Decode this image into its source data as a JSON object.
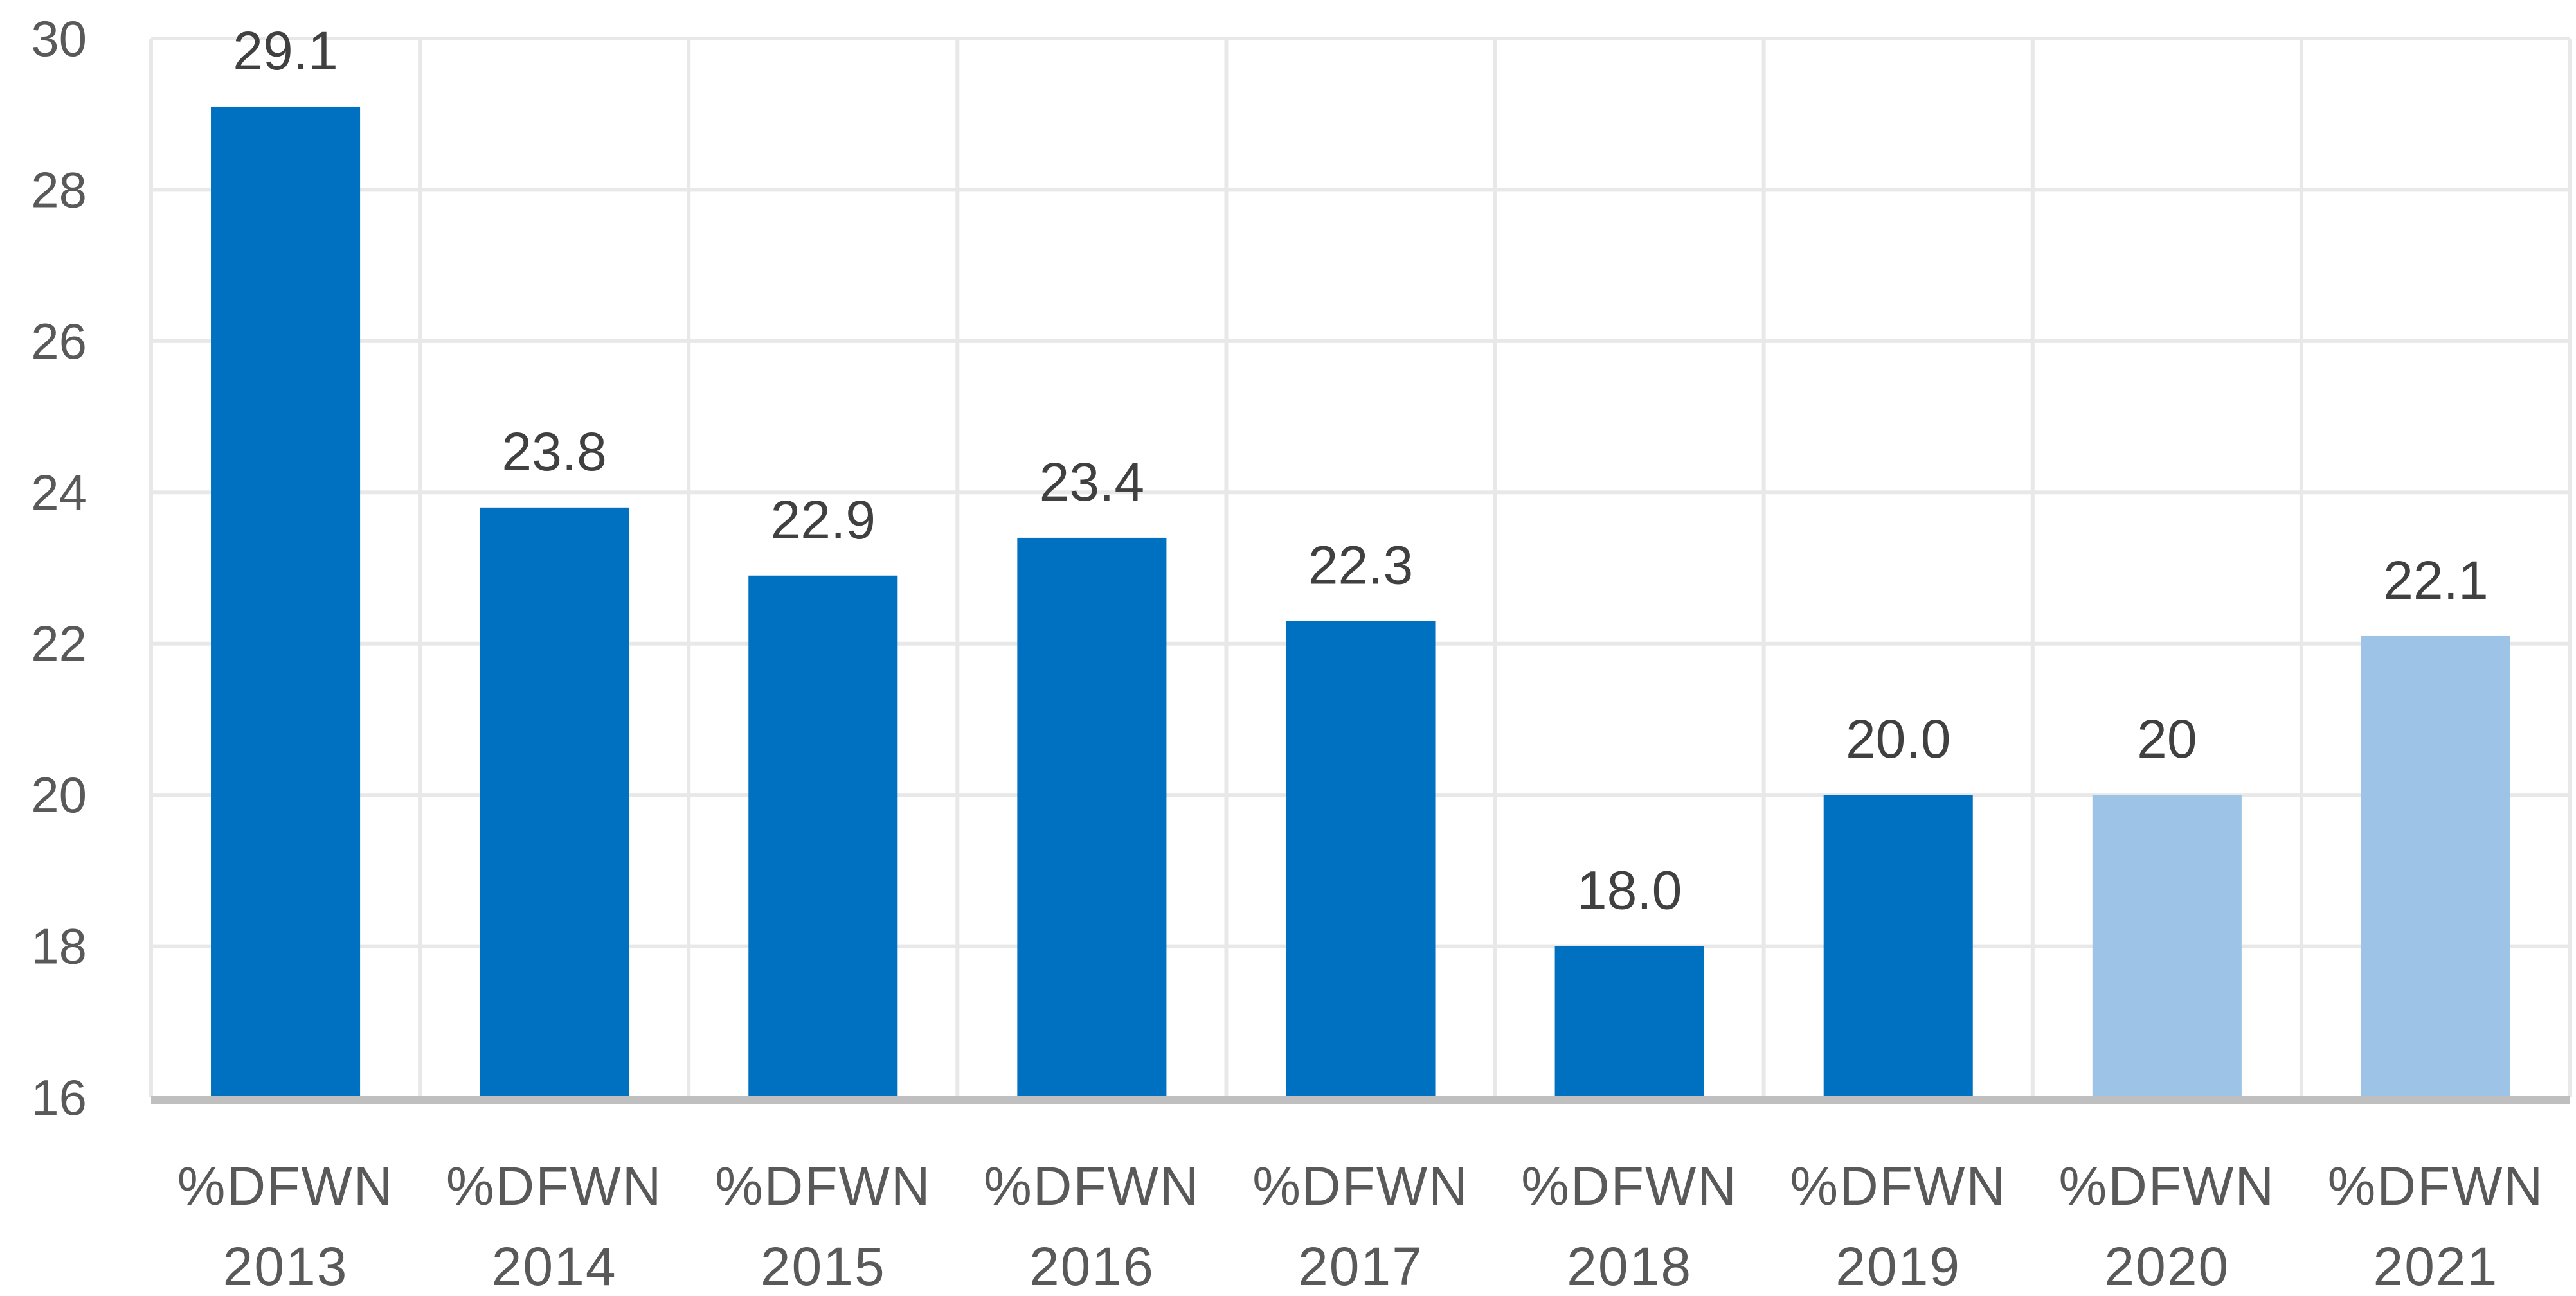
{
  "chart_data": {
    "type": "bar",
    "categories": [
      [
        "%DFWN",
        "2013"
      ],
      [
        "%DFWN",
        "2014"
      ],
      [
        "%DFWN",
        "2015"
      ],
      [
        "%DFWN",
        "2016"
      ],
      [
        "%DFWN",
        "2017"
      ],
      [
        "%DFWN",
        "2018"
      ],
      [
        "%DFWN",
        "2019"
      ],
      [
        "%DFWN",
        "2020"
      ],
      [
        "%DFWN",
        "2021"
      ]
    ],
    "values": [
      29.1,
      23.8,
      22.9,
      23.4,
      22.3,
      18.0,
      20.0,
      20,
      22.1
    ],
    "data_labels": [
      "29.1",
      "23.8",
      "22.9",
      "23.4",
      "22.3",
      "18.0",
      "20.0",
      "20",
      "22.1"
    ],
    "bar_shade": [
      "dark",
      "dark",
      "dark",
      "dark",
      "dark",
      "dark",
      "dark",
      "light",
      "light"
    ],
    "ylim": [
      16,
      30
    ],
    "yticks": [
      16,
      18,
      20,
      22,
      24,
      26,
      28,
      30
    ],
    "grid": true,
    "legend": "none",
    "colors": {
      "bar_dark": "#0070C0",
      "bar_light": "#9DC3E6",
      "gridline": "#E8E8E8",
      "axis_line": "#BFBFBF",
      "tick_text": "#595959",
      "label_text": "#404040"
    },
    "title": "",
    "xlabel": "",
    "ylabel": ""
  }
}
